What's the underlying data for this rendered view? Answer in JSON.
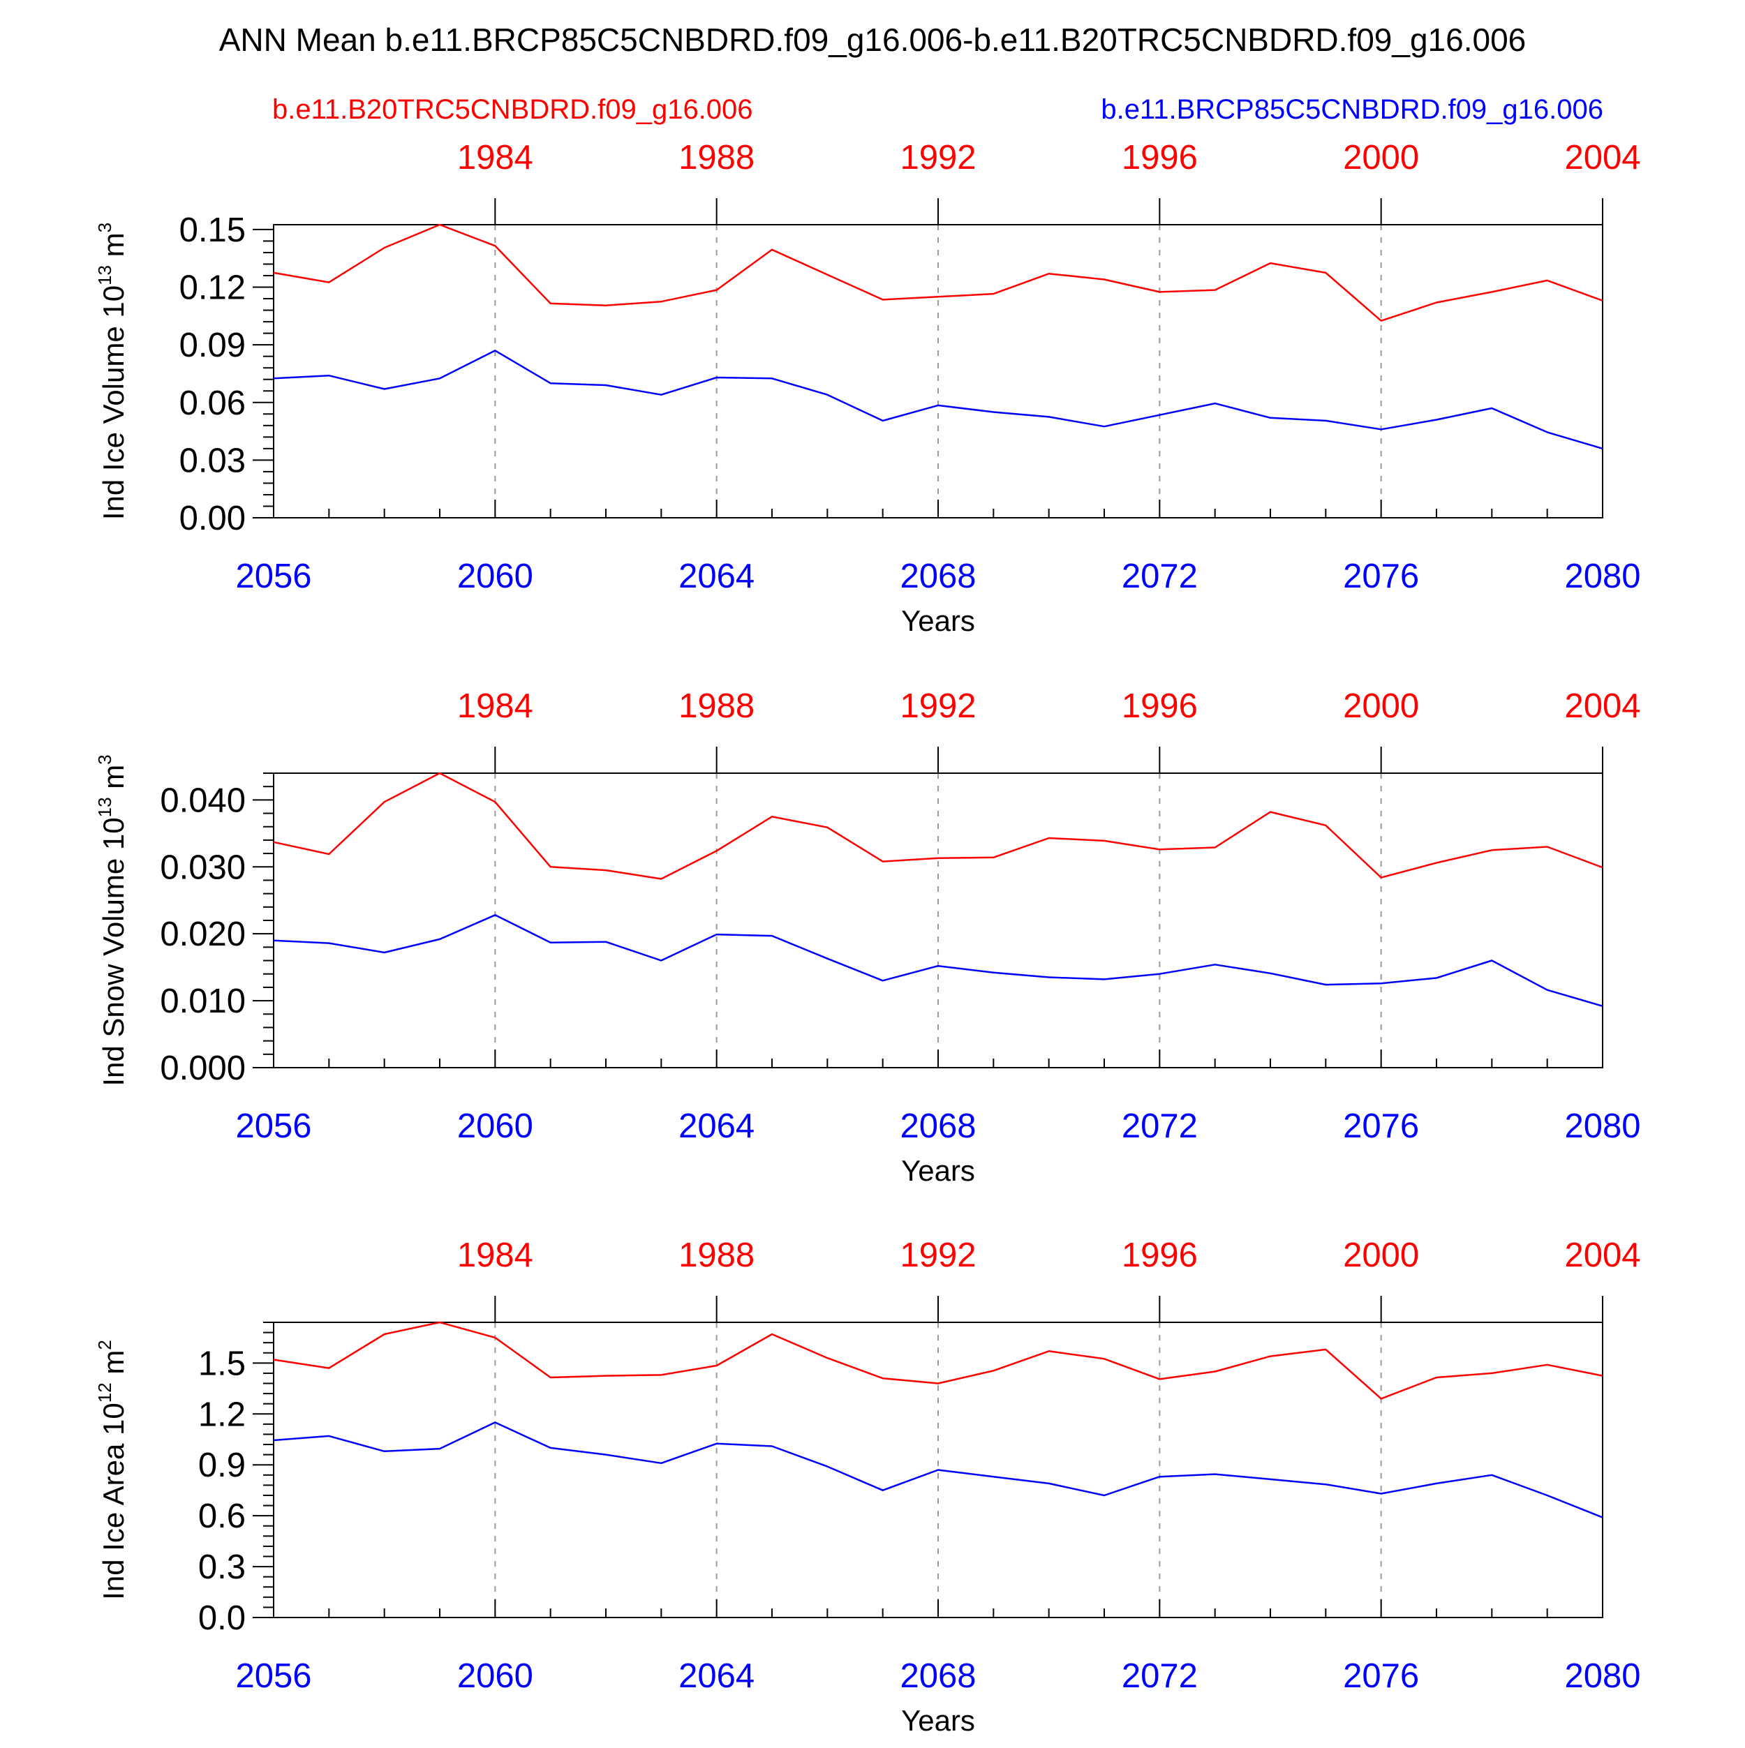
{
  "title": "ANN Mean b.e11.BRCP85C5CNBDRD.f09_g16.006-b.e11.B20TRC5CNBDRD.f09_g16.006",
  "legend": {
    "case1": "b.e11.B20TRC5CNBDRD.f09_g16.006",
    "case2": "b.e11.BRCP85C5CNBDRD.f09_g16.006"
  },
  "colors": {
    "case1": "#ff0000",
    "case2": "#0000ff",
    "axis": "#000000",
    "grid": "#9a9a9a"
  },
  "xlabel": "Years",
  "bottom_ticks": [
    "2056",
    "2060",
    "2064",
    "2068",
    "2072",
    "2076",
    "2080"
  ],
  "top_ticks": [
    "1984",
    "1988",
    "1992",
    "1996",
    "2000",
    "2004"
  ],
  "chart_data": [
    {
      "type": "line",
      "ylabel": "Ind Ice Volume 10",
      "ylabel_exp": "13",
      "ylabel_unit": " m",
      "ylabel_unit_exp": "3",
      "xlabel": "Years",
      "ylim": [
        0,
        0.1525
      ],
      "yticks": [
        "0.00",
        "0.03",
        "0.06",
        "0.09",
        "0.12",
        "0.15"
      ],
      "x": [
        2056,
        2057,
        2058,
        2059,
        2060,
        2061,
        2062,
        2063,
        2064,
        2065,
        2066,
        2067,
        2068,
        2069,
        2070,
        2071,
        2072,
        2073,
        2074,
        2075,
        2076,
        2077,
        2078,
        2079,
        2080
      ],
      "series": [
        {
          "name": "b.e11.B20TRC5CNBDRD.f09_g16.006",
          "color": "#ff0000",
          "values": [
            0.1275,
            0.1225,
            0.1405,
            0.1525,
            0.1415,
            0.1115,
            0.1105,
            0.1125,
            0.1185,
            0.1395,
            0.1265,
            0.1135,
            0.115,
            0.1165,
            0.127,
            0.124,
            0.1175,
            0.1185,
            0.1325,
            0.1275,
            0.1025,
            0.112,
            0.1175,
            0.1235,
            0.113
          ]
        },
        {
          "name": "b.e11.BRCP85C5CNBDRD.f09_g16.006",
          "color": "#0000ff",
          "values": [
            0.0725,
            0.074,
            0.067,
            0.0725,
            0.087,
            0.07,
            0.069,
            0.064,
            0.073,
            0.0725,
            0.064,
            0.0505,
            0.0585,
            0.055,
            0.0525,
            0.0475,
            0.0535,
            0.0595,
            0.052,
            0.0505,
            0.046,
            0.051,
            0.057,
            0.0445,
            0.036
          ]
        }
      ]
    },
    {
      "type": "line",
      "ylabel": "Ind Snow Volume 10",
      "ylabel_exp": "13",
      "ylabel_unit": " m",
      "ylabel_unit_exp": "3",
      "xlabel": "Years",
      "ylim": [
        0,
        0.044
      ],
      "yticks": [
        "0.000",
        "0.010",
        "0.020",
        "0.030",
        "0.040"
      ],
      "x": [
        2056,
        2057,
        2058,
        2059,
        2060,
        2061,
        2062,
        2063,
        2064,
        2065,
        2066,
        2067,
        2068,
        2069,
        2070,
        2071,
        2072,
        2073,
        2074,
        2075,
        2076,
        2077,
        2078,
        2079,
        2080
      ],
      "series": [
        {
          "name": "b.e11.B20TRC5CNBDRD.f09_g16.006",
          "color": "#ff0000",
          "values": [
            0.0337,
            0.0319,
            0.0397,
            0.044,
            0.0397,
            0.03,
            0.0295,
            0.0282,
            0.0324,
            0.0375,
            0.0359,
            0.0308,
            0.0313,
            0.0314,
            0.0343,
            0.0339,
            0.0326,
            0.0329,
            0.0382,
            0.0362,
            0.0284,
            0.0306,
            0.0325,
            0.033,
            0.0299
          ]
        },
        {
          "name": "b.e11.BRCP85C5CNBDRD.f09_g16.006",
          "color": "#0000ff",
          "values": [
            0.019,
            0.0186,
            0.0172,
            0.0192,
            0.0228,
            0.0187,
            0.0188,
            0.016,
            0.0199,
            0.0197,
            0.0163,
            0.013,
            0.0152,
            0.0142,
            0.0135,
            0.0132,
            0.014,
            0.0154,
            0.0141,
            0.0124,
            0.0126,
            0.0134,
            0.016,
            0.0116,
            0.0092
          ]
        }
      ]
    },
    {
      "type": "line",
      "ylabel": "Ind Ice Area 10",
      "ylabel_exp": "12",
      "ylabel_unit": " m",
      "ylabel_unit_exp": "2",
      "xlabel": "Years",
      "ylim": [
        0,
        1.74
      ],
      "yticks": [
        "0.0",
        "0.3",
        "0.6",
        "0.9",
        "1.2",
        "1.5"
      ],
      "x": [
        2056,
        2057,
        2058,
        2059,
        2060,
        2061,
        2062,
        2063,
        2064,
        2065,
        2066,
        2067,
        2068,
        2069,
        2070,
        2071,
        2072,
        2073,
        2074,
        2075,
        2076,
        2077,
        2078,
        2079,
        2080
      ],
      "series": [
        {
          "name": "b.e11.B20TRC5CNBDRD.f09_g16.006",
          "color": "#ff0000",
          "values": [
            1.52,
            1.47,
            1.67,
            1.74,
            1.65,
            1.415,
            1.425,
            1.43,
            1.485,
            1.67,
            1.53,
            1.41,
            1.38,
            1.455,
            1.57,
            1.525,
            1.405,
            1.45,
            1.54,
            1.58,
            1.29,
            1.415,
            1.44,
            1.49,
            1.425
          ]
        },
        {
          "name": "b.e11.BRCP85C5CNBDRD.f09_g16.006",
          "color": "#0000ff",
          "values": [
            1.045,
            1.07,
            0.98,
            0.995,
            1.15,
            1.0,
            0.96,
            0.91,
            1.025,
            1.01,
            0.89,
            0.75,
            0.87,
            0.83,
            0.79,
            0.72,
            0.83,
            0.845,
            0.815,
            0.785,
            0.73,
            0.79,
            0.84,
            0.72,
            0.59
          ]
        }
      ]
    }
  ]
}
